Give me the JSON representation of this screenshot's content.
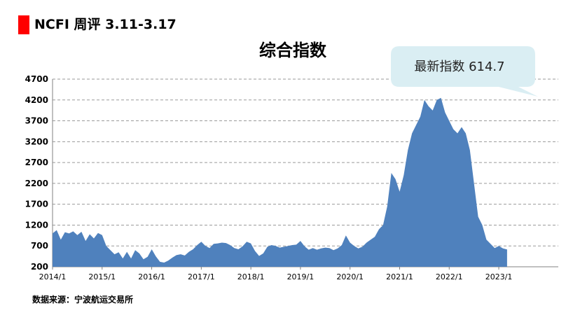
{
  "header": {
    "title": "NCFI 周评 3.11-3.17",
    "accent_color": "#ff0000"
  },
  "chart_data": {
    "type": "area",
    "title": "综合指数",
    "xlabel": "",
    "ylabel": "",
    "ylim": [
      200,
      4700
    ],
    "yticks": [
      "4700",
      "4200",
      "3700",
      "3200",
      "2700",
      "2200",
      "1700",
      "1200",
      "700",
      "200"
    ],
    "xticks": [
      "2014/1",
      "2015/1",
      "2016/1",
      "2017/1",
      "2018/1",
      "2019/1",
      "2020/1",
      "2021/1",
      "2022/1",
      "2023/1"
    ],
    "grid": true,
    "fill_color": "#4f81bd",
    "annotation": {
      "text": "最新指数 614.7",
      "value": 614.7,
      "box_color": "#daeef3"
    },
    "series": [
      {
        "x": [
          "2014-01",
          "2014-02",
          "2014-03",
          "2014-04",
          "2014-05",
          "2014-06",
          "2014-07",
          "2014-08",
          "2014-09",
          "2014-10",
          "2014-11",
          "2014-12",
          "2015-01",
          "2015-02",
          "2015-03",
          "2015-04",
          "2015-05",
          "2015-06",
          "2015-07",
          "2015-08",
          "2015-09",
          "2015-10",
          "2015-11",
          "2015-12",
          "2016-01",
          "2016-02",
          "2016-03",
          "2016-04",
          "2016-05",
          "2016-06",
          "2016-07",
          "2016-08",
          "2016-09",
          "2016-10",
          "2016-11",
          "2016-12",
          "2017-01",
          "2017-02",
          "2017-03",
          "2017-04",
          "2017-05",
          "2017-06",
          "2017-07",
          "2017-08",
          "2017-09",
          "2017-10",
          "2017-11",
          "2017-12",
          "2018-01",
          "2018-02",
          "2018-03",
          "2018-04",
          "2018-05",
          "2018-06",
          "2018-07",
          "2018-08",
          "2018-09",
          "2018-10",
          "2018-11",
          "2018-12",
          "2019-01",
          "2019-02",
          "2019-03",
          "2019-04",
          "2019-05",
          "2019-06",
          "2019-07",
          "2019-08",
          "2019-09",
          "2019-10",
          "2019-11",
          "2019-12",
          "2020-01",
          "2020-02",
          "2020-03",
          "2020-04",
          "2020-05",
          "2020-06",
          "2020-07",
          "2020-08",
          "2020-09",
          "2020-10",
          "2020-11",
          "2020-12",
          "2021-01",
          "2021-02",
          "2021-03",
          "2021-04",
          "2021-05",
          "2021-06",
          "2021-07",
          "2021-08",
          "2021-09",
          "2021-10",
          "2021-11",
          "2021-12",
          "2022-01",
          "2022-02",
          "2022-03",
          "2022-04",
          "2022-05",
          "2022-06",
          "2022-07",
          "2022-08",
          "2022-09",
          "2022-10",
          "2022-11",
          "2022-12",
          "2023-01",
          "2023-02",
          "2023-03"
        ],
        "values": [
          1000,
          1080,
          850,
          1030,
          1000,
          1050,
          960,
          1040,
          820,
          980,
          880,
          1010,
          960,
          700,
          600,
          500,
          550,
          400,
          560,
          400,
          600,
          520,
          380,
          440,
          620,
          450,
          320,
          300,
          350,
          420,
          480,
          500,
          470,
          560,
          620,
          720,
          800,
          700,
          650,
          750,
          760,
          780,
          770,
          720,
          650,
          620,
          690,
          800,
          760,
          580,
          460,
          520,
          680,
          720,
          700,
          660,
          680,
          700,
          720,
          730,
          820,
          690,
          610,
          650,
          610,
          640,
          660,
          650,
          600,
          640,
          720,
          950,
          780,
          700,
          640,
          680,
          780,
          850,
          920,
          1100,
          1200,
          1650,
          2450,
          2300,
          2000,
          2400,
          3000,
          3400,
          3600,
          3800,
          4200,
          4050,
          3950,
          4200,
          4250,
          3900,
          3700,
          3500,
          3400,
          3550,
          3400,
          3000,
          2200,
          1400,
          1200,
          850,
          750,
          650,
          700,
          640,
          614.7
        ]
      }
    ]
  },
  "source": "数据来源：宁波航运交易所"
}
